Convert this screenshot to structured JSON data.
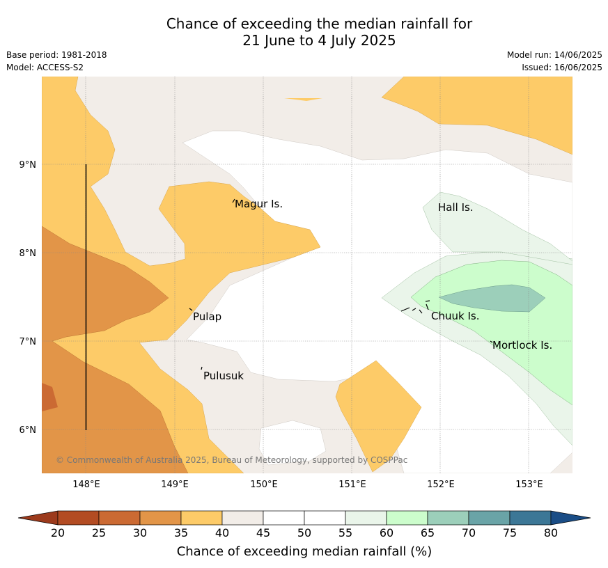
{
  "title_line1": "Chance of exceeding the median rainfall for",
  "title_line2": "21 June to 4 July 2025",
  "base_period": "Base period: 1981-2018",
  "model": "Model: ACCESS-S2",
  "model_run": "Model run: 14/06/2025",
  "issued": "Issued: 16/06/2025",
  "copyright": "© Commonwealth of Australia 2025, Bureau of Meteorology, supported by COSPPac",
  "map": {
    "lon_ticks": [
      "148°E",
      "149°E",
      "150°E",
      "151°E",
      "152°E",
      "153°E"
    ],
    "lat_ticks": [
      "9°N",
      "8°N",
      "7°N",
      "6°N"
    ],
    "places": {
      "magur": "Magur Is.",
      "hall": "Hall Is.",
      "pulap": "Pulap",
      "chuuk": "Chuuk Is.",
      "mortlock": "Mortlock Is.",
      "pulusuk": "Pulusuk"
    }
  },
  "colorbar": {
    "title": "Chance of exceeding median rainfall (%)",
    "ticks": [
      "20",
      "25",
      "30",
      "35",
      "40",
      "45",
      "50",
      "55",
      "60",
      "65",
      "70",
      "75",
      "80"
    ],
    "colors": [
      "#9c3a1c",
      "#b34c23",
      "#cb6a33",
      "#e29548",
      "#fdcb68",
      "#f2ede8",
      "#ffffff",
      "#ffffff",
      "#eaf5ea",
      "#ccfdcc",
      "#9ccfba",
      "#6aa4a7",
      "#3c7796",
      "#1a4d86"
    ]
  },
  "fill_colors": {
    "c25_30": "#cb6a33",
    "c30_35": "#e29548",
    "c35_40": "#fdcb68",
    "c40_45": "#f2ede8",
    "c45_55": "#ffffff",
    "c55_60": "#eaf5ea",
    "c60_65": "#ccfdcc",
    "c65_70": "#9ccfba"
  }
}
